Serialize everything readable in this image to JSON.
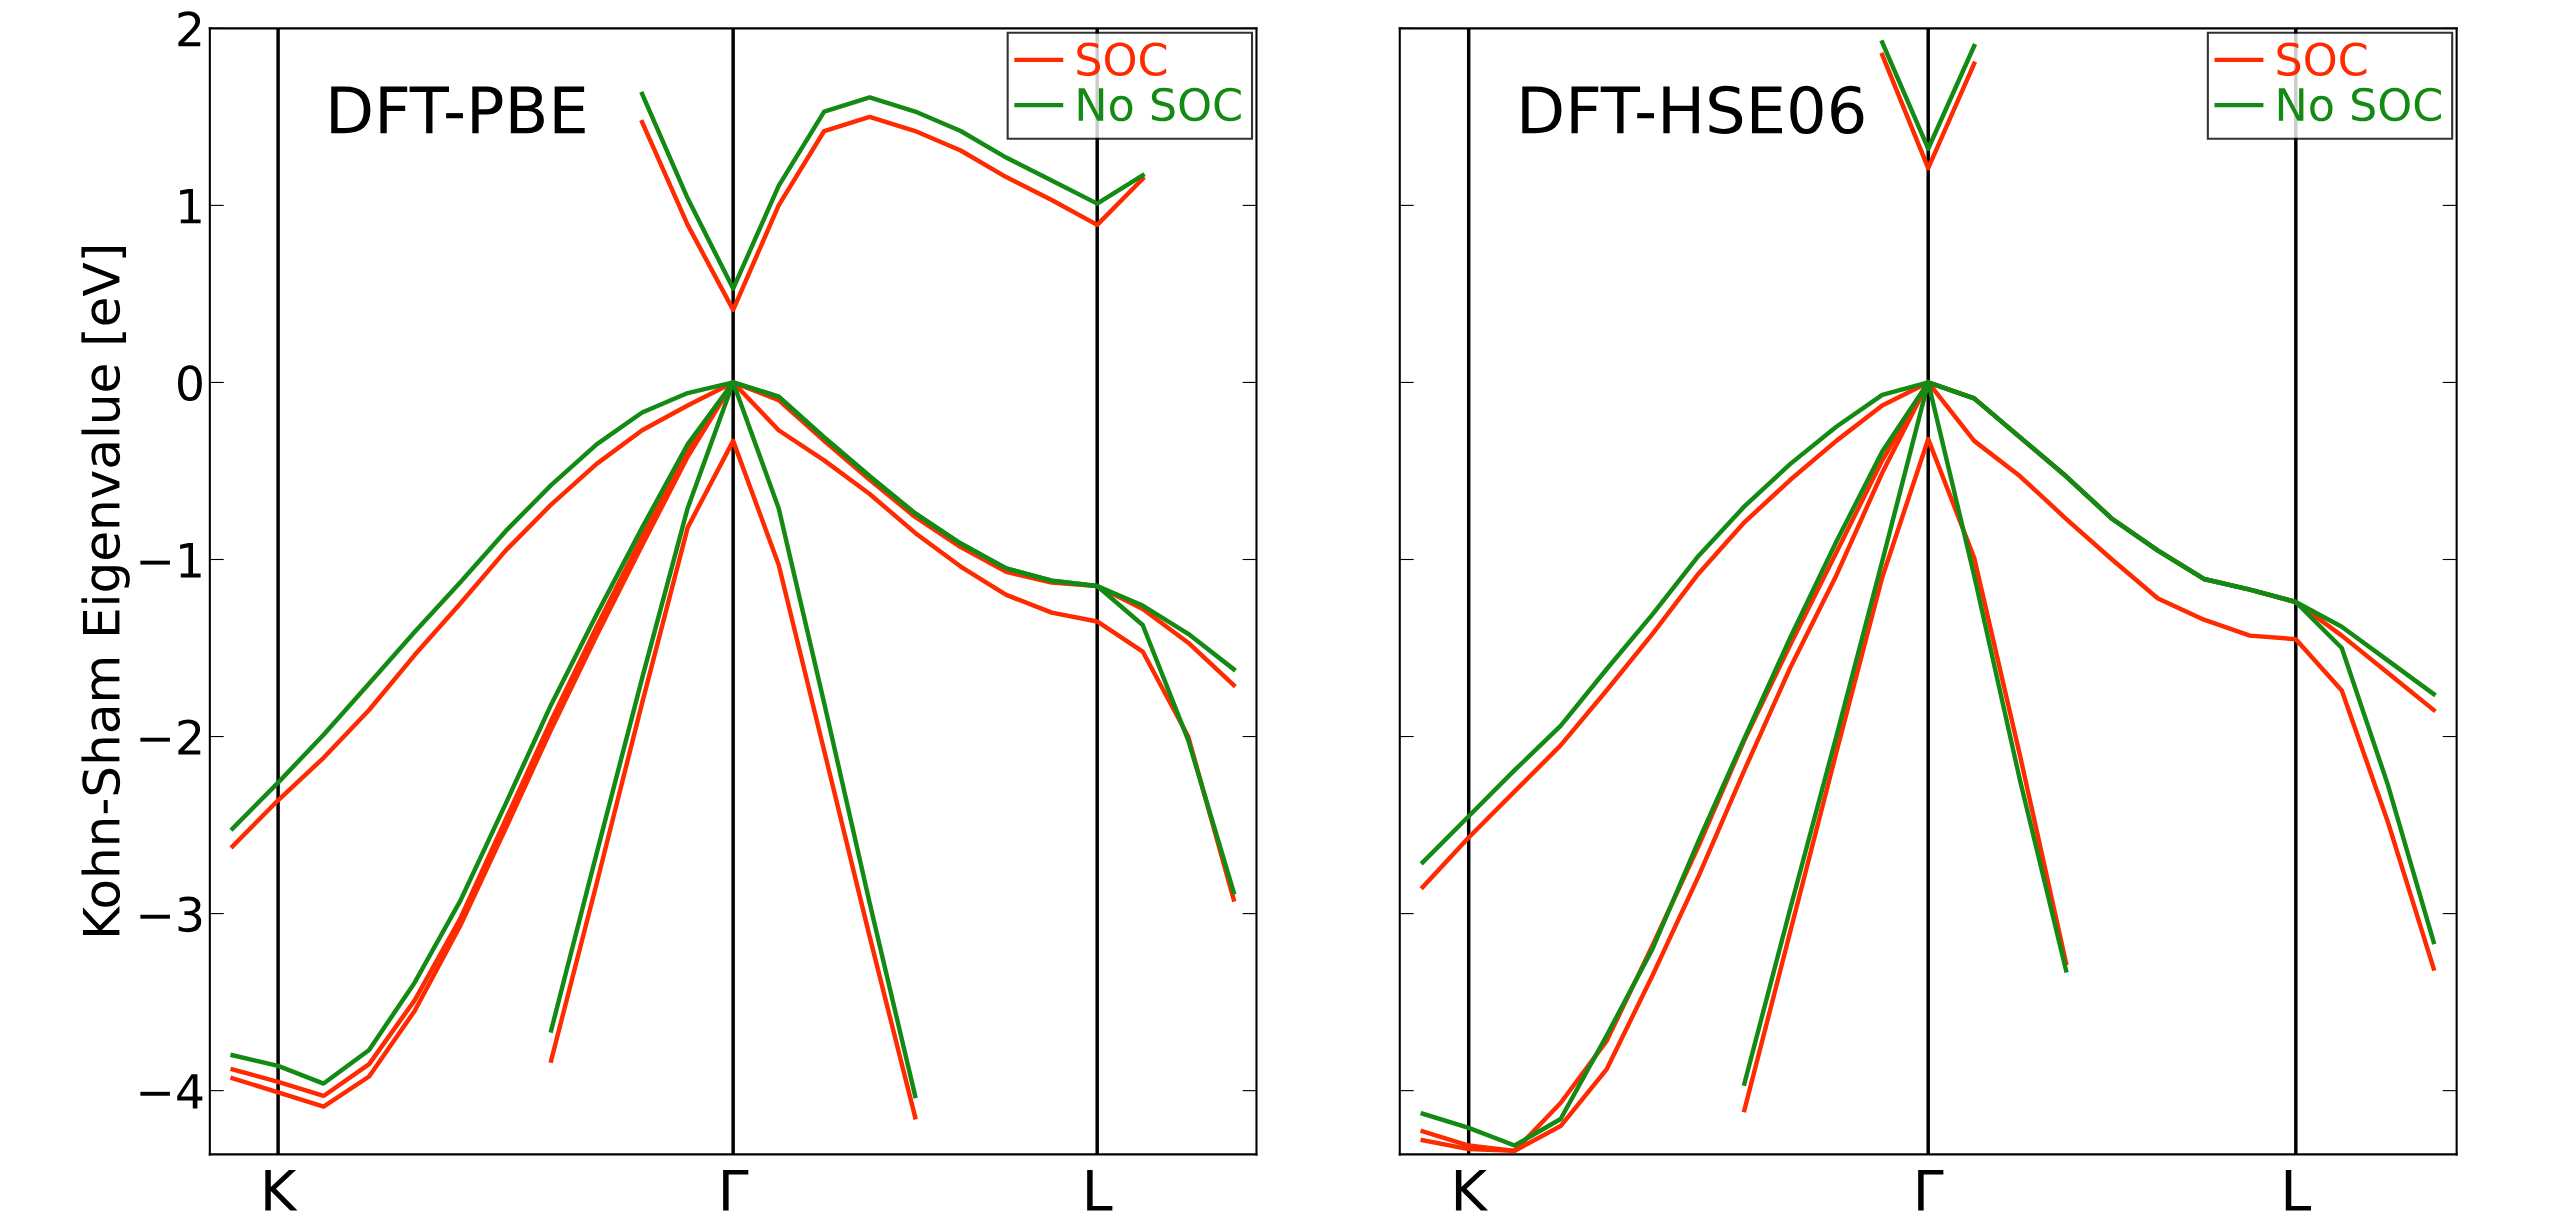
{
  "chart_data": [
    {
      "type": "line",
      "ylabel": "Kohn-Sham Eigenvalue [eV]",
      "annotations": [
        "DFT-PBE"
      ],
      "legend": "top right",
      "grid": false,
      "categories": [
        null,
        "K",
        null,
        null,
        null,
        null,
        null,
        null,
        null,
        null,
        null,
        "Γ",
        null,
        null,
        null,
        null,
        null,
        null,
        null,
        "L",
        null,
        null,
        null
      ],
      "ylim": [
        -4.36,
        2
      ],
      "yticks": [
        -4,
        -3,
        -2,
        -1,
        0,
        1,
        2
      ],
      "ref_lines": [
        {
          "axis": "x",
          "value": "K",
          "color": "#000000"
        },
        {
          "axis": "x",
          "value": "Γ",
          "color": "#000000"
        },
        {
          "axis": "x",
          "value": "L",
          "color": "#000000"
        }
      ],
      "series": [
        {
          "name": "SOC",
          "color": "#ff2a00",
          "values": [
            -2.62,
            -2.36,
            -2.12,
            -1.85,
            -1.54,
            -1.25,
            -0.95,
            -0.69,
            -0.46,
            -0.27,
            -0.13,
            0,
            -0.27,
            -0.44,
            -0.63,
            -0.85,
            -1.04,
            -1.2,
            -1.3,
            -1.35,
            -1.52,
            -2.0,
            -2.92
          ]
        },
        {
          "color": "#ff2a00",
          "values": [
            -3.88,
            -3.95,
            -4.03,
            -3.85,
            -3.49,
            -3.03,
            -2.47,
            -1.91,
            -1.38,
            -0.87,
            -0.39,
            0,
            -0.1,
            -0.33,
            -0.55,
            -0.76,
            -0.93,
            -1.07,
            -1.13,
            -1.15,
            -1.28,
            -1.47,
            -1.71
          ]
        },
        {
          "color": "#ff2a00",
          "values": [
            -3.93,
            -4.01,
            -4.09,
            -3.92,
            -3.55,
            -3.07,
            -2.52,
            -1.96,
            -1.43,
            -0.92,
            -0.42,
            0,
            null,
            null,
            null,
            null,
            null,
            null,
            null,
            null,
            null,
            null,
            null
          ]
        },
        {
          "color": "#ff2a00",
          "values": [
            null,
            null,
            null,
            null,
            null,
            null,
            null,
            -3.83,
            -2.83,
            -1.81,
            -0.82,
            -0.33,
            -1.03,
            -2.08,
            -3.13,
            -4.15,
            null,
            null,
            null,
            null,
            null,
            null,
            null
          ]
        },
        {
          "color": "#ff2a00",
          "values": [
            null,
            null,
            null,
            null,
            null,
            null,
            null,
            null,
            null,
            1.47,
            0.89,
            0.41,
            1.0,
            1.42,
            1.5,
            1.42,
            1.31,
            1.16,
            1.03,
            0.89,
            1.15,
            null,
            null
          ]
        },
        {
          "name": "No SOC",
          "color": "#138a13",
          "values": [
            -2.52,
            -2.26,
            -1.99,
            -1.7,
            -1.41,
            -1.13,
            -0.84,
            -0.58,
            -0.35,
            -0.17,
            -0.06,
            0,
            -0.08,
            -0.31,
            -0.53,
            -0.74,
            -0.91,
            -1.05,
            -1.12,
            -1.15,
            -1.26,
            -1.42,
            -1.62
          ]
        },
        {
          "color": "#138a13",
          "values": [
            -3.8,
            -3.86,
            -3.96,
            -3.77,
            -3.39,
            -2.93,
            -2.38,
            -1.82,
            -1.31,
            -0.82,
            -0.35,
            0,
            -0.08,
            -0.31,
            -0.53,
            -0.74,
            -0.91,
            -1.05,
            -1.12,
            -1.15,
            -1.37,
            -2.02,
            -2.88
          ]
        },
        {
          "color": "#138a13",
          "values": [
            null,
            null,
            null,
            null,
            null,
            null,
            null,
            -3.66,
            -2.66,
            -1.67,
            -0.71,
            0,
            -0.71,
            -1.81,
            -2.94,
            -4.03,
            null,
            null,
            null,
            null,
            null,
            null,
            null
          ]
        },
        {
          "color": "#138a13",
          "values": [
            null,
            null,
            null,
            null,
            null,
            null,
            null,
            null,
            null,
            1.63,
            1.04,
            0.53,
            1.11,
            1.53,
            1.61,
            1.53,
            1.42,
            1.27,
            1.14,
            1.01,
            1.17,
            null,
            null
          ]
        }
      ]
    },
    {
      "type": "line",
      "annotations": [
        "DFT-HSE06"
      ],
      "legend": "top right",
      "grid": false,
      "tick_labels": "x",
      "categories": [
        null,
        "K",
        null,
        null,
        null,
        null,
        null,
        null,
        null,
        null,
        null,
        "Γ",
        null,
        null,
        null,
        null,
        null,
        null,
        null,
        "L",
        null,
        null,
        null
      ],
      "ylim": [
        -4.36,
        2
      ],
      "yticks": [
        -4,
        -3,
        -2,
        -1,
        0,
        1,
        2
      ],
      "ref_lines": [
        {
          "axis": "x",
          "value": "K",
          "color": "#000000"
        },
        {
          "axis": "x",
          "value": "Γ",
          "color": "#000000"
        },
        {
          "axis": "x",
          "value": "L",
          "color": "#000000"
        }
      ],
      "series": [
        {
          "name": "SOC",
          "color": "#ff2a00",
          "values": [
            -2.85,
            -2.57,
            -2.31,
            -2.05,
            -1.74,
            -1.42,
            -1.08,
            -0.79,
            -0.55,
            -0.33,
            -0.13,
            0,
            -0.33,
            -0.53,
            -0.77,
            -1.0,
            -1.22,
            -1.34,
            -1.43,
            -1.45,
            -1.74,
            -2.48,
            -3.31
          ]
        },
        {
          "color": "#ff2a00",
          "values": [
            -4.23,
            -4.31,
            -4.34,
            -4.07,
            -3.72,
            -3.18,
            -2.62,
            -2.02,
            -1.48,
            -0.96,
            -0.44,
            0,
            -0.09,
            -0.31,
            -0.53,
            -0.77,
            -0.95,
            -1.11,
            -1.17,
            -1.24,
            -1.43,
            -1.64,
            -1.85
          ]
        },
        {
          "color": "#ff2a00",
          "values": [
            -4.28,
            -4.33,
            -4.34,
            -4.2,
            -3.88,
            -3.35,
            -2.79,
            -2.19,
            -1.61,
            -1.09,
            -0.51,
            0,
            null,
            null,
            null,
            null,
            null,
            null,
            null,
            null,
            null,
            null,
            null
          ]
        },
        {
          "color": "#ff2a00",
          "values": [
            null,
            null,
            null,
            null,
            null,
            null,
            null,
            -4.11,
            -3.1,
            -2.09,
            -1.1,
            -0.32,
            -0.99,
            -2.11,
            -3.28,
            null,
            null,
            null,
            null,
            null,
            null,
            null,
            null
          ]
        },
        {
          "color": "#ff2a00",
          "values": [
            null,
            null,
            null,
            null,
            null,
            null,
            null,
            null,
            null,
            null,
            1.85,
            1.21,
            1.8,
            null,
            null,
            null,
            null,
            null,
            null,
            null,
            null,
            null,
            null
          ]
        },
        {
          "name": "No SOC",
          "color": "#138a13",
          "values": [
            -2.71,
            -2.45,
            -2.19,
            -1.94,
            -1.62,
            -1.31,
            -0.98,
            -0.7,
            -0.46,
            -0.25,
            -0.07,
            0,
            -0.09,
            -0.31,
            -0.53,
            -0.77,
            -0.95,
            -1.11,
            -1.17,
            -1.24,
            -1.38,
            -1.57,
            -1.76
          ]
        },
        {
          "color": "#138a13",
          "values": [
            -4.13,
            -4.21,
            -4.31,
            -4.16,
            -3.69,
            -3.2,
            -2.59,
            -2.01,
            -1.44,
            -0.9,
            -0.39,
            0,
            -0.09,
            -0.31,
            -0.53,
            -0.77,
            -0.95,
            -1.11,
            -1.17,
            -1.24,
            -1.5,
            -2.27,
            -3.16
          ]
        },
        {
          "color": "#138a13",
          "values": [
            null,
            null,
            null,
            null,
            null,
            null,
            null,
            -3.96,
            -2.97,
            -2.0,
            -1.01,
            0,
            -1.09,
            -2.25,
            -3.32,
            null,
            null,
            null,
            null,
            null,
            null,
            null,
            null
          ]
        },
        {
          "color": "#138a13",
          "values": [
            null,
            null,
            null,
            null,
            null,
            null,
            null,
            null,
            null,
            null,
            1.92,
            1.32,
            1.9,
            null,
            null,
            null,
            null,
            null,
            null,
            null,
            null,
            null,
            null
          ]
        }
      ]
    }
  ]
}
